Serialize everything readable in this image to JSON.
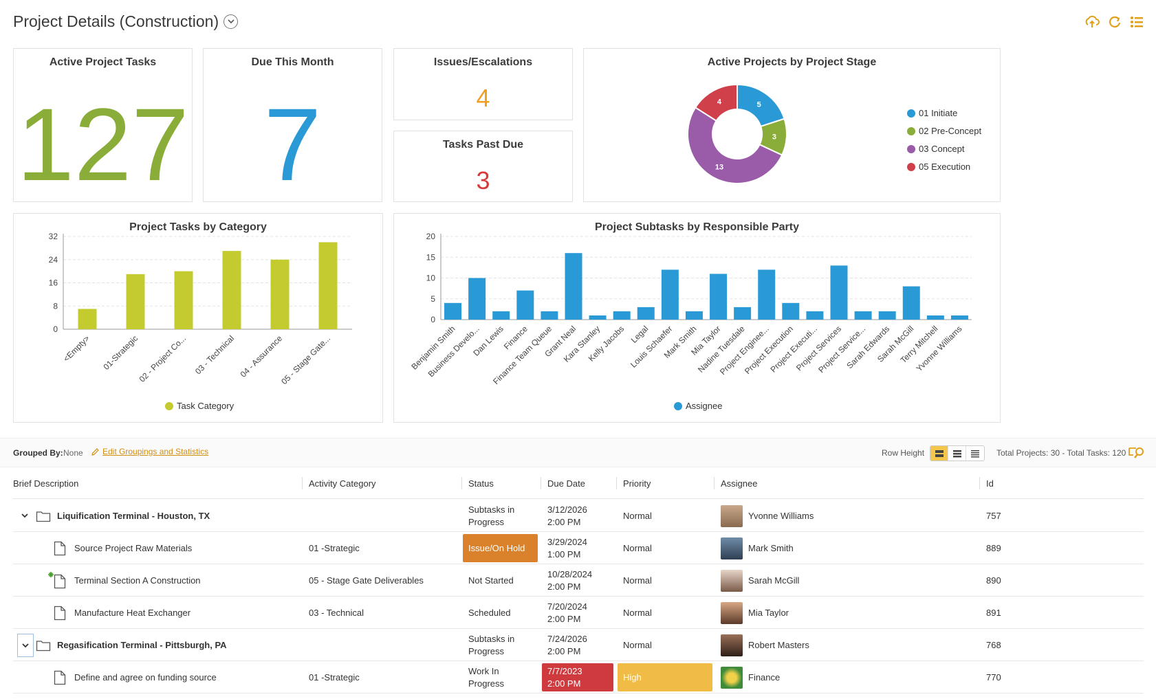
{
  "page_title": "Project Details (Construction)",
  "kpis": {
    "active_tasks": {
      "label": "Active Project Tasks",
      "value": "127",
      "color": "#8aad3a"
    },
    "due_month": {
      "label": "Due This Month",
      "value": "7",
      "color": "#2a9ad6"
    },
    "issues": {
      "label": "Issues/Escalations",
      "value": "4",
      "color": "#f0a020"
    },
    "past_due": {
      "label": "Tasks Past Due",
      "value": "3",
      "color": "#d83a3a"
    }
  },
  "stage_chart": {
    "title": "Active Projects by Project Stage",
    "legend": [
      "01 Initiate",
      "02 Pre-Concept",
      "03 Concept",
      "05 Execution"
    ]
  },
  "category_chart": {
    "title": "Project Tasks by Category",
    "legend": "Task Category"
  },
  "party_chart": {
    "title": "Project Subtasks by Responsible Party",
    "legend": "Assignee"
  },
  "chart_data": [
    {
      "type": "pie",
      "title": "Active Projects by Project Stage",
      "categories": [
        "01 Initiate",
        "02 Pre-Concept",
        "03 Concept",
        "05 Execution"
      ],
      "values": [
        5,
        3,
        13,
        4
      ],
      "colors": [
        "#2a9ad6",
        "#8aad3a",
        "#9a5ca8",
        "#d0404a"
      ],
      "donut": true,
      "legend_position": "right"
    },
    {
      "type": "bar",
      "title": "Project Tasks by Category",
      "categories": [
        "<Empty>",
        "01-Strategic",
        "02 - Project Co...",
        "03 - Technical",
        "04 - Assurance",
        "05 - Stage Gate..."
      ],
      "series": [
        {
          "name": "Task Category",
          "values": [
            7,
            19,
            20,
            27,
            24,
            30
          ]
        }
      ],
      "yticks": [
        0,
        8,
        16,
        24,
        32
      ],
      "ylim": [
        0,
        32
      ],
      "color": "#c3cb2f",
      "grid": true,
      "legend_position": "bottom"
    },
    {
      "type": "bar",
      "title": "Project Subtasks by Responsible Party",
      "categories": [
        "Benjamin Smith",
        "Business Develo...",
        "Dan Lewis",
        "Finance",
        "Finance Team Queue",
        "Grant Neal",
        "Kara Stanley",
        "Kelly Jacobs",
        "Legal",
        "Louis Schaefer",
        "Mark Smith",
        "Mia Taylor",
        "Nadine Tuesdale",
        "Project Enginee...",
        "Project Execution",
        "Project Executi...",
        "Project Services",
        "Project Service...",
        "Sarah Edwards",
        "Sarah McGill",
        "Terry Mitchell",
        "Yvonne Williams"
      ],
      "series": [
        {
          "name": "Assignee",
          "values": [
            4,
            10,
            2,
            7,
            2,
            16,
            1,
            2,
            3,
            12,
            2,
            11,
            3,
            12,
            4,
            2,
            13,
            2,
            2,
            8,
            1,
            1
          ]
        }
      ],
      "yticks": [
        0,
        5,
        10,
        15,
        20
      ],
      "ylim": [
        0,
        20
      ],
      "color": "#2a9ad6",
      "grid": true,
      "legend_position": "bottom"
    }
  ],
  "toolbar": {
    "grouped_by_label": "Grouped By:",
    "grouped_by_value": "None",
    "edit_label": "Edit Groupings and Statistics",
    "row_height_label": "Row Height",
    "totals": "Total Projects: 30 - Total Tasks: 120"
  },
  "columns": [
    "Brief Description",
    "Activity Category",
    "Status",
    "Due Date",
    "Priority",
    "Assignee",
    "Id"
  ],
  "rows": [
    {
      "desc": "Liquification Terminal - Houston, TX",
      "category": "",
      "status_l1": "Subtasks in",
      "status_l2": "Progress",
      "due_l1": "3/12/2026",
      "due_l2": "2:00 PM",
      "priority": "Normal",
      "assignee": "Yvonne Williams",
      "id": "757"
    },
    {
      "desc": "Source Project Raw Materials",
      "category": "01 -Strategic",
      "status_l1": "Issue/On Hold",
      "status_l2": "",
      "due_l1": "3/29/2024",
      "due_l2": "1:00 PM",
      "priority": "Normal",
      "assignee": "Mark Smith",
      "id": "889"
    },
    {
      "desc": "Terminal Section A Construction",
      "category": "05 - Stage Gate Deliverables",
      "status_l1": "Not Started",
      "status_l2": "",
      "due_l1": "10/28/2024",
      "due_l2": "2:00 PM",
      "priority": "Normal",
      "assignee": "Sarah McGill",
      "id": "890"
    },
    {
      "desc": "Manufacture Heat Exchanger",
      "category": "03 - Technical",
      "status_l1": "Scheduled",
      "status_l2": "",
      "due_l1": "7/20/2024",
      "due_l2": "2:00 PM",
      "priority": "Normal",
      "assignee": "Mia Taylor",
      "id": "891"
    },
    {
      "desc": "Regasification Terminal - Pittsburgh, PA",
      "category": "",
      "status_l1": "Subtasks in",
      "status_l2": "Progress",
      "due_l1": "7/24/2026",
      "due_l2": "2:00 PM",
      "priority": "Normal",
      "assignee": "Robert Masters",
      "id": "768"
    },
    {
      "desc": "Define and agree on funding source",
      "category": "01 -Strategic",
      "status_l1": "Work In",
      "status_l2": "Progress",
      "due_l1": "7/7/2023",
      "due_l2": "2:00 PM",
      "priority": "High",
      "assignee": "Finance",
      "id": "770"
    }
  ],
  "colors": {
    "accent": "#e0a01c",
    "issue_status": "#d9822b",
    "overdue": "#cf3a3f",
    "high_priority": "#f0bc45"
  }
}
